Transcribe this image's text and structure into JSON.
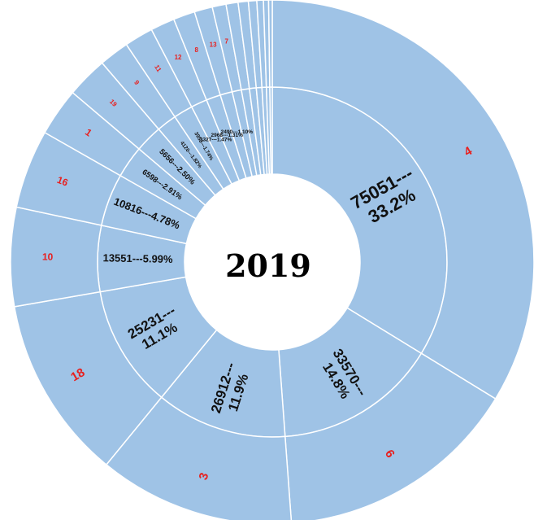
{
  "chart_data": {
    "type": "pie",
    "title": "2019",
    "colors": {
      "fill": "#9fc3e6",
      "stroke": "#ffffff",
      "outer_label": "#e8201f",
      "inner_label": "#111111",
      "center_text": "#000000"
    },
    "segments": [
      {
        "outer_label": "4",
        "inner_label": "75051---33.2%",
        "value": 75051,
        "percent": 33.2
      },
      {
        "outer_label": "6",
        "inner_label": "33570---14.8%",
        "value": 33570,
        "percent": 14.8
      },
      {
        "outer_label": "3",
        "inner_label": "26912---11.9%",
        "value": 26912,
        "percent": 11.9
      },
      {
        "outer_label": "18",
        "inner_label": "25231---11.1%",
        "value": 25231,
        "percent": 11.1
      },
      {
        "outer_label": "10",
        "inner_label": "13551---5.99%",
        "value": 13551,
        "percent": 5.99
      },
      {
        "outer_label": "16",
        "inner_label": "10816---4.78%",
        "value": 10816,
        "percent": 4.78
      },
      {
        "outer_label": "1",
        "inner_label": "6598---2.91%",
        "value": 6598,
        "percent": 2.91
      },
      {
        "outer_label": "19",
        "inner_label": "5656---2.50%",
        "value": 5656,
        "percent": 2.5
      },
      {
        "outer_label": "9",
        "inner_label": "4120---1.82%",
        "value": 4120,
        "percent": 1.82
      },
      {
        "outer_label": "11",
        "inner_label": "3953---1.74%",
        "value": 3953,
        "percent": 1.74
      },
      {
        "outer_label": "12",
        "inner_label": "3327---1.47%",
        "value": 3327,
        "percent": 1.47
      },
      {
        "outer_label": "8",
        "inner_label": "2968---1.31%",
        "value": 2968,
        "percent": 1.31
      },
      {
        "outer_label": "13",
        "inner_label": "2490---1.10%",
        "value": 2490,
        "percent": 1.1
      },
      {
        "outer_label": "7",
        "inner_label": "",
        "value": 1900,
        "percent": 0.84
      },
      {
        "outer_label": "",
        "inner_label": "",
        "value": 1650,
        "percent": 0.73
      },
      {
        "outer_label": "",
        "inner_label": "",
        "value": 1400,
        "percent": 0.62
      },
      {
        "outer_label": "",
        "inner_label": "",
        "value": 1150,
        "percent": 0.51
      },
      {
        "outer_label": "",
        "inner_label": "",
        "value": 900,
        "percent": 0.4
      },
      {
        "outer_label": "",
        "inner_label": "",
        "value": 700,
        "percent": 0.31
      },
      {
        "outer_label": "",
        "inner_label": "",
        "value": 500,
        "percent": 0.22
      }
    ]
  }
}
